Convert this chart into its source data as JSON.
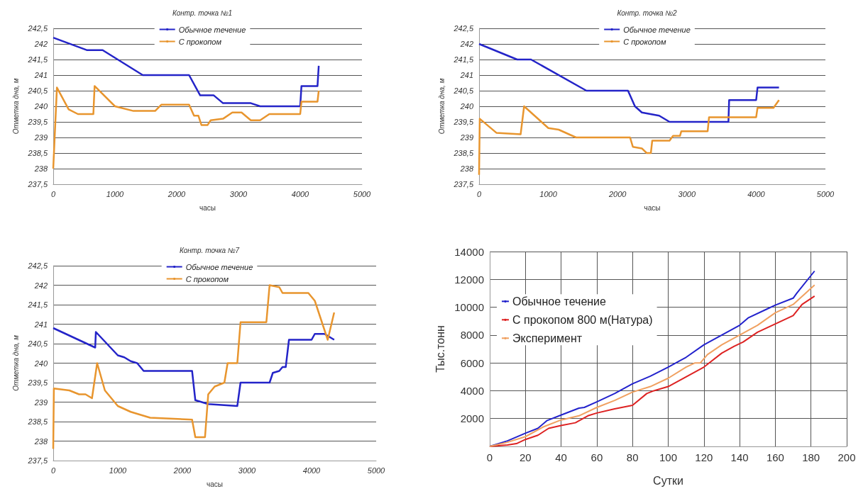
{
  "chart_data": [
    {
      "type": "line",
      "title": "Контр. точка №1",
      "xlabel": "часы",
      "ylabel": "Отметка дна, м",
      "xlim": [
        0,
        5000
      ],
      "xticks": [
        0,
        1000,
        2000,
        3000,
        4000,
        5000
      ],
      "ylim": [
        237.5,
        242.5
      ],
      "yticks": [
        {
          "value": 237.5,
          "label": "237,5"
        },
        238,
        {
          "value": 238.5,
          "label": "238,5"
        },
        239,
        {
          "value": 239.5,
          "label": "239,5"
        },
        240,
        {
          "value": 240.5,
          "label": "240,5"
        },
        241,
        {
          "value": 241.5,
          "label": "241,5"
        },
        242,
        {
          "value": 242.5,
          "label": "242,5"
        }
      ],
      "grid": "y",
      "legend": "top",
      "marker": "none",
      "series": [
        {
          "name": "Обычное течение",
          "color": "#2424c8",
          "x": [
            0,
            550,
            800,
            1450,
            2200,
            2380,
            2600,
            2750,
            3200,
            3350,
            4000,
            4020,
            4280,
            4300
          ],
          "values": [
            242.2,
            241.8,
            241.8,
            241,
            241,
            240.35,
            240.35,
            240.1,
            240.1,
            240,
            240,
            240.65,
            240.65,
            241.3
          ]
        },
        {
          "name": "С прокопом",
          "color": "#e8952e",
          "x": [
            0,
            60,
            250,
            400,
            650,
            670,
            1000,
            1300,
            1650,
            1750,
            2200,
            2280,
            2350,
            2400,
            2500,
            2550,
            2750,
            2900,
            3050,
            3200,
            3350,
            3500,
            4000,
            4020,
            4280,
            4300
          ],
          "values": [
            238,
            240.6,
            239.9,
            239.75,
            239.75,
            240.65,
            240,
            239.85,
            239.85,
            240.05,
            240.05,
            239.7,
            239.7,
            239.4,
            239.4,
            239.55,
            239.6,
            239.8,
            239.8,
            239.55,
            239.55,
            239.75,
            239.75,
            240.15,
            240.15,
            240.5
          ]
        }
      ]
    },
    {
      "type": "line",
      "title": "Контр. точка №2",
      "xlabel": "часы",
      "ylabel": "Отметка дна, м",
      "xlim": [
        0,
        5000
      ],
      "xticks": [
        0,
        1000,
        2000,
        3000,
        4000,
        5000
      ],
      "ylim": [
        237.5,
        242.5
      ],
      "yticks": [
        {
          "value": 237.5,
          "label": "237,5"
        },
        238,
        {
          "value": 238.5,
          "label": "238,5"
        },
        239,
        {
          "value": 239.5,
          "label": "239,5"
        },
        240,
        {
          "value": 240.5,
          "label": "240,5"
        },
        241,
        {
          "value": 241.5,
          "label": "241,5"
        },
        242,
        {
          "value": 242.5,
          "label": "242,5"
        }
      ],
      "grid": "y",
      "legend": "top",
      "marker": "none",
      "series": [
        {
          "name": "Обычное течение",
          "color": "#2424c8",
          "x": [
            0,
            550,
            750,
            1550,
            2150,
            2250,
            2350,
            2600,
            2750,
            3600,
            3610,
            4000,
            4020,
            4330
          ],
          "values": [
            242,
            241.5,
            241.5,
            240.5,
            240.5,
            240,
            239.8,
            239.7,
            239.5,
            239.5,
            240.2,
            240.2,
            240.6,
            240.6
          ]
        },
        {
          "name": "С прокопом",
          "color": "#e8952e",
          "x": [
            0,
            10,
            250,
            600,
            650,
            1000,
            1150,
            1400,
            2180,
            2220,
            2350,
            2420,
            2480,
            2500,
            2750,
            2800,
            2900,
            2920,
            3300,
            3320,
            4000,
            4020,
            4250,
            4330
          ],
          "values": [
            237.8,
            239.6,
            239.15,
            239.1,
            240,
            239.3,
            239.25,
            239,
            239,
            238.7,
            238.65,
            238.5,
            238.5,
            238.9,
            238.9,
            239.05,
            239.05,
            239.2,
            239.2,
            239.65,
            239.65,
            239.95,
            239.95,
            240.2
          ]
        }
      ]
    },
    {
      "type": "line",
      "title": "Контр. точка №7",
      "xlabel": "часы",
      "ylabel": "Отметка дна, м",
      "xlim": [
        0,
        5000
      ],
      "xticks": [
        0,
        1000,
        2000,
        3000,
        4000,
        5000
      ],
      "ylim": [
        237.5,
        242.5
      ],
      "yticks": [
        {
          "value": 237.5,
          "label": "237,5"
        },
        238,
        {
          "value": 238.5,
          "label": "238,5"
        },
        239,
        {
          "value": 239.5,
          "label": "239,5"
        },
        240,
        {
          "value": 240.5,
          "label": "240,5"
        },
        241,
        {
          "value": 241.5,
          "label": "241,5"
        },
        242,
        {
          "value": 242.5,
          "label": "242,5"
        }
      ],
      "grid": "y",
      "legend": "top",
      "marker": "none",
      "series": [
        {
          "name": "Обычное течение",
          "color": "#2424c8",
          "x": [
            0,
            650,
            660,
            1000,
            1100,
            1200,
            1300,
            1400,
            2150,
            2200,
            2400,
            2850,
            2900,
            3350,
            3400,
            3500,
            3550,
            3600,
            3650,
            4000,
            4050,
            4200,
            4350
          ],
          "values": [
            240.9,
            240.4,
            240.8,
            240.2,
            240.15,
            240.05,
            240,
            239.8,
            239.8,
            239.05,
            238.95,
            238.9,
            239.5,
            239.5,
            239.75,
            239.8,
            239.9,
            239.9,
            240.6,
            240.6,
            240.75,
            240.75,
            240.6
          ]
        },
        {
          "name": "С прокопом",
          "color": "#e8952e",
          "x": [
            0,
            10,
            250,
            400,
            500,
            600,
            680,
            800,
            1000,
            1200,
            1500,
            2150,
            2200,
            2350,
            2400,
            2500,
            2650,
            2700,
            2850,
            2900,
            3300,
            3350,
            3500,
            3550,
            3950,
            4050,
            4150,
            4250,
            4350
          ],
          "values": [
            237.8,
            239.35,
            239.3,
            239.2,
            239.2,
            239.1,
            240,
            239.3,
            238.9,
            238.75,
            238.6,
            238.55,
            238.1,
            238.1,
            239.2,
            239.4,
            239.5,
            240,
            240,
            241.05,
            241.05,
            242,
            241.95,
            241.8,
            241.8,
            241.6,
            241.1,
            240.6,
            241.3
          ]
        }
      ]
    },
    {
      "type": "line",
      "xlabel": "Сутки",
      "ylabel": "Тыс.тонн",
      "xlim": [
        0,
        200
      ],
      "xticks": [
        0,
        20,
        40,
        60,
        80,
        100,
        120,
        140,
        160,
        180,
        200
      ],
      "ylim": [
        0,
        14000
      ],
      "yticks": [
        {
          "value": 0,
          "label": null
        },
        2000,
        4000,
        6000,
        8000,
        10000,
        12000,
        14000
      ],
      "grid": true,
      "legend": "left",
      "marker": "none",
      "series": [
        {
          "name": "Обычное течение",
          "color": "#2222cc",
          "x": [
            0,
            10,
            20,
            27,
            32,
            40,
            50,
            53,
            60,
            70,
            80,
            90,
            100,
            110,
            120,
            130,
            140,
            145,
            155,
            160,
            170,
            172,
            182
          ],
          "values": [
            0,
            400,
            950,
            1300,
            1850,
            2250,
            2750,
            2800,
            3200,
            3800,
            4500,
            5050,
            5700,
            6400,
            7300,
            8000,
            8700,
            9250,
            9850,
            10150,
            10650,
            11000,
            12600
          ]
        },
        {
          "name": "С прокопом 800 м(Натура)",
          "color": "#dd2222",
          "x": [
            0,
            10,
            15,
            20,
            27,
            33,
            40,
            48,
            55,
            60,
            70,
            80,
            88,
            92,
            100,
            110,
            120,
            130,
            137,
            142,
            150,
            160,
            170,
            175,
            182
          ],
          "values": [
            0,
            100,
            200,
            500,
            800,
            1300,
            1500,
            1700,
            2200,
            2400,
            2700,
            2950,
            3800,
            4000,
            4300,
            5000,
            5700,
            6700,
            7200,
            7500,
            8200,
            8800,
            9400,
            10200,
            10800
          ]
        },
        {
          "name": "Эксперимент",
          "color": "#f0a060",
          "x": [
            0,
            10,
            20,
            30,
            40,
            50,
            60,
            70,
            80,
            90,
            100,
            110,
            115,
            118,
            122,
            130,
            140,
            150,
            160,
            170,
            182
          ],
          "values": [
            0,
            300,
            700,
            1400,
            1900,
            2200,
            2800,
            3300,
            3900,
            4300,
            4900,
            5700,
            6000,
            6000,
            6600,
            7300,
            8000,
            8700,
            9600,
            10200,
            11600
          ]
        }
      ]
    }
  ]
}
